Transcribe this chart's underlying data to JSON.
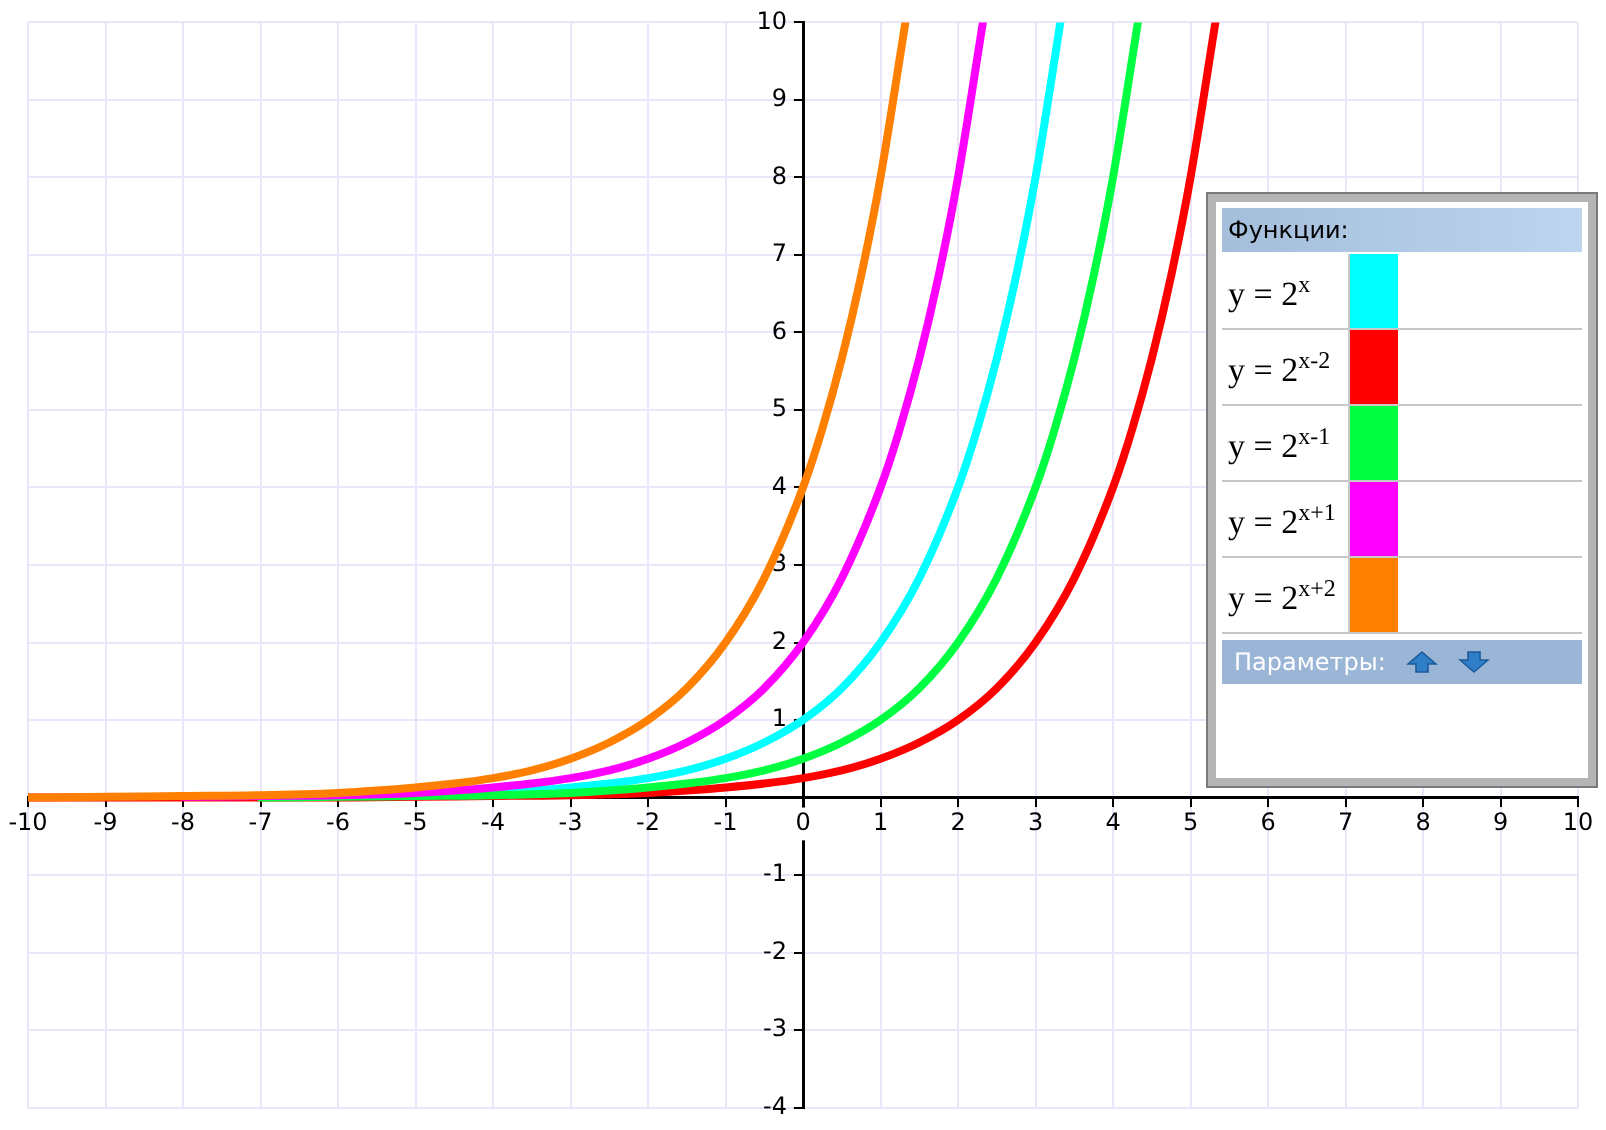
{
  "chart_data": {
    "type": "line",
    "legend_title": "Функции:",
    "annotations": [
      "Параметры:"
    ],
    "xlim": [
      -10,
      10
    ],
    "ylim": [
      -4,
      10
    ],
    "xticks": [
      -10,
      -9,
      -8,
      -7,
      -6,
      -5,
      -4,
      -3,
      -2,
      -1,
      0,
      1,
      2,
      3,
      4,
      5,
      6,
      7,
      8,
      9,
      10
    ],
    "yticks": [
      -4,
      -3,
      -2,
      -1,
      1,
      2,
      3,
      4,
      5,
      6,
      7,
      8,
      9,
      10
    ],
    "grid": true,
    "legend": "right",
    "marker": "none",
    "line_style": "solid",
    "series": [
      {
        "name": "y = 2$^{x}$",
        "color": "#00ffff",
        "x": [
          -5,
          -4,
          -3.5,
          -3,
          -2.5,
          -2,
          -1.5,
          -1,
          -0.5,
          0,
          0.5,
          1,
          1.5,
          2,
          2.25,
          2.5,
          2.75,
          3,
          3.32
        ],
        "values": [
          0.03,
          0.06,
          0.09,
          0.13,
          0.18,
          0.25,
          0.35,
          0.5,
          0.71,
          1,
          1.41,
          2,
          2.83,
          4,
          4.76,
          5.66,
          6.73,
          8,
          9.99
        ]
      },
      {
        "name": "y = 2$^{x-2}$",
        "color": "#ff0000",
        "x": [
          -10,
          -9,
          -8,
          -7,
          -6,
          -5,
          -4,
          -3,
          -2,
          -1.5,
          -1,
          -0.5,
          0,
          0.5,
          1,
          1.5,
          2,
          2.5,
          3,
          3.5,
          4,
          4.25,
          4.5,
          4.75,
          5,
          5.32
        ],
        "values": [
          0,
          0,
          0,
          0,
          0,
          0.01,
          0.02,
          0.03,
          0.06,
          0.09,
          0.13,
          0.18,
          0.25,
          0.35,
          0.5,
          0.71,
          1,
          1.41,
          2,
          2.83,
          4,
          4.76,
          5.66,
          6.73,
          8,
          9.99
        ]
      },
      {
        "name": "y = 2$^{x-1}$",
        "color": "#00ff40",
        "x": [
          -7,
          -6,
          -5,
          -4,
          -3,
          -2.5,
          -2,
          -1.5,
          -1,
          -0.5,
          0,
          0.5,
          1,
          1.5,
          2,
          2.5,
          3,
          3.25,
          3.5,
          3.75,
          4,
          4.32
        ],
        "values": [
          0,
          0.01,
          0.02,
          0.03,
          0.06,
          0.09,
          0.13,
          0.18,
          0.25,
          0.35,
          0.5,
          0.71,
          1,
          1.41,
          2,
          2.83,
          4,
          4.76,
          5.66,
          6.73,
          8,
          9.99
        ]
      },
      {
        "name": "y = 2$^{x+1}$",
        "color": "#ff00ff",
        "x": [
          -8,
          -7,
          -6,
          -5,
          -4.5,
          -4,
          -3.5,
          -3,
          -2.5,
          -2,
          -1.5,
          -1,
          -0.5,
          0,
          0.5,
          1,
          1.25,
          1.5,
          1.75,
          2,
          2.32
        ],
        "values": [
          0.01,
          0.02,
          0.03,
          0.06,
          0.09,
          0.13,
          0.18,
          0.25,
          0.35,
          0.5,
          0.71,
          1,
          1.41,
          2,
          2.83,
          4,
          4.76,
          5.66,
          6.73,
          8,
          9.99
        ]
      },
      {
        "name": "y = 2$^{x+2}$",
        "color": "#ff8000",
        "x": [
          -10,
          -9,
          -8,
          -7,
          -6,
          -5.5,
          -5,
          -4.5,
          -4,
          -3.5,
          -3,
          -2.5,
          -2,
          -1.5,
          -1,
          -0.5,
          0,
          0.25,
          0.5,
          0.75,
          1,
          1.32
        ],
        "values": [
          0,
          0.01,
          0.02,
          0.03,
          0.06,
          0.09,
          0.13,
          0.18,
          0.25,
          0.35,
          0.5,
          0.71,
          1,
          1.41,
          2,
          2.83,
          4,
          4.76,
          5.66,
          6.73,
          8,
          9.99
        ]
      }
    ]
  }
}
